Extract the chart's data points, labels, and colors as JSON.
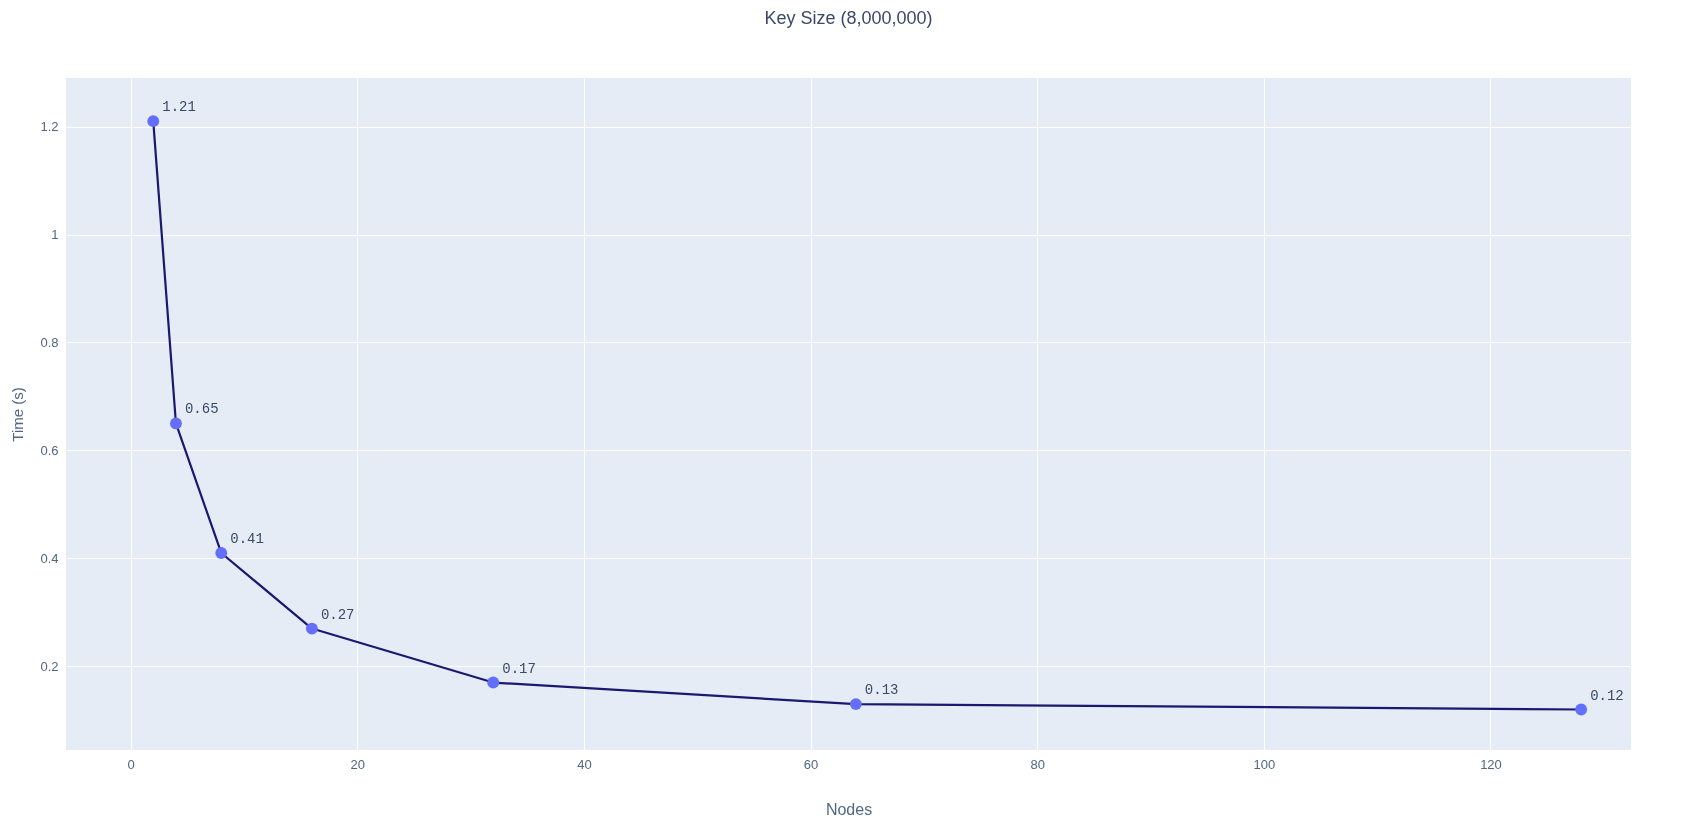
{
  "chart_data": {
    "type": "line",
    "title": "Key Size (8,000,000)",
    "xlabel": "Nodes",
    "ylabel": "Time (s)",
    "x": [
      2,
      4,
      8,
      16,
      32,
      64,
      128
    ],
    "series": [
      {
        "color": "#191970",
        "values": [
          1.21,
          0.65,
          0.41,
          0.27,
          0.17,
          0.13,
          0.12
        ]
      }
    ],
    "xlim": [
      -5.7,
      132.4
    ],
    "xticks": [
      0,
      20,
      40,
      60,
      80,
      100,
      120
    ],
    "ylim": [
      0.045,
      1.29
    ],
    "yticks": [
      0.2,
      0.4,
      0.6,
      0.8,
      1,
      1.2
    ],
    "grid": true,
    "marker": "circle",
    "line_style": "solid",
    "data_labels": true
  }
}
